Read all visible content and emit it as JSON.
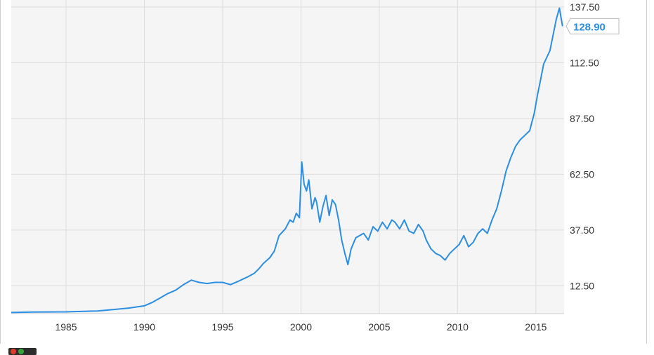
{
  "chart_data": {
    "type": "line",
    "title": "",
    "xlabel": "",
    "ylabel": "",
    "xlim": [
      1981.5,
      2016.8
    ],
    "ylim": [
      0,
      137.5
    ],
    "x_ticks": [
      "1985",
      "1990",
      "1995",
      "2000",
      "2005",
      "2010",
      "2015"
    ],
    "y_ticks": [
      "12.50",
      "37.50",
      "62.50",
      "87.50",
      "112.50",
      "137.50"
    ],
    "grid": true,
    "last_value_label": "128.90",
    "colors": {
      "line": "#2b8ee3",
      "plot_background": "#f5f5f5",
      "grid": "#dddddd",
      "badge_text": "#2b8ee3"
    },
    "series": [
      {
        "x": [
          1981.5,
          1983,
          1985,
          1987,
          1988,
          1989,
          1990,
          1990.5,
          1991,
          1991.5,
          1992,
          1992.5,
          1993,
          1993.5,
          1994,
          1994.5,
          1995,
          1995.5,
          1996,
          1996.3,
          1996.6,
          1997,
          1997.3,
          1997.6,
          1998,
          1998.3,
          1998.6,
          1999,
          1999.3,
          1999.5,
          1999.7,
          1999.9,
          2000.05,
          2000.2,
          2000.35,
          2000.5,
          2000.7,
          2000.9,
          2001,
          2001.2,
          2001.4,
          2001.6,
          2001.8,
          2002,
          2002.2,
          2002.4,
          2002.6,
          2002.8,
          2003.0,
          2003.2,
          2003.5,
          2004,
          2004.3,
          2004.6,
          2004.9,
          2005.2,
          2005.5,
          2005.8,
          2006,
          2006.3,
          2006.6,
          2006.9,
          2007.2,
          2007.5,
          2007.8,
          2008,
          2008.3,
          2008.6,
          2008.9,
          2009.2,
          2009.5,
          2009.8,
          2010.1,
          2010.4,
          2010.7,
          2011,
          2011.3,
          2011.6,
          2011.9,
          2012.2,
          2012.5,
          2012.8,
          2013.1,
          2013.4,
          2013.7,
          2014,
          2014.3,
          2014.6,
          2014.9,
          2015.1,
          2015.3,
          2015.5,
          2015.7,
          2015.9,
          2016.1,
          2016.3,
          2016.5,
          2016.7
        ],
        "y": [
          0.5,
          0.7,
          0.8,
          1.2,
          1.8,
          2.5,
          3.5,
          5.0,
          7.0,
          9.0,
          10.5,
          13.0,
          15.0,
          14.0,
          13.5,
          14.0,
          14.0,
          13.0,
          14.5,
          15.5,
          16.5,
          18.0,
          20.0,
          22.5,
          25.0,
          28.0,
          35.0,
          38.0,
          42.0,
          41.0,
          45.0,
          43.0,
          68.0,
          58.0,
          55.0,
          60.0,
          47.0,
          52.0,
          50.0,
          41.0,
          48.0,
          53.0,
          44.0,
          51.0,
          49.0,
          42.0,
          33.0,
          27.0,
          22.0,
          29.0,
          34.0,
          36.0,
          33.0,
          39.0,
          37.0,
          41.0,
          38.0,
          42.0,
          41.0,
          38.0,
          42.0,
          37.0,
          36.0,
          40.0,
          37.0,
          33.0,
          29.0,
          27.0,
          26.0,
          24.0,
          27.0,
          29.0,
          31.0,
          35.0,
          30.0,
          32.0,
          36.0,
          38.0,
          36.0,
          42.0,
          47.0,
          55.0,
          64.0,
          70.0,
          75.0,
          78.0,
          80.0,
          82.0,
          90.0,
          98.0,
          105.0,
          112.0,
          115.0,
          118.0,
          125.0,
          132.0,
          137.0,
          128.9
        ]
      }
    ]
  }
}
